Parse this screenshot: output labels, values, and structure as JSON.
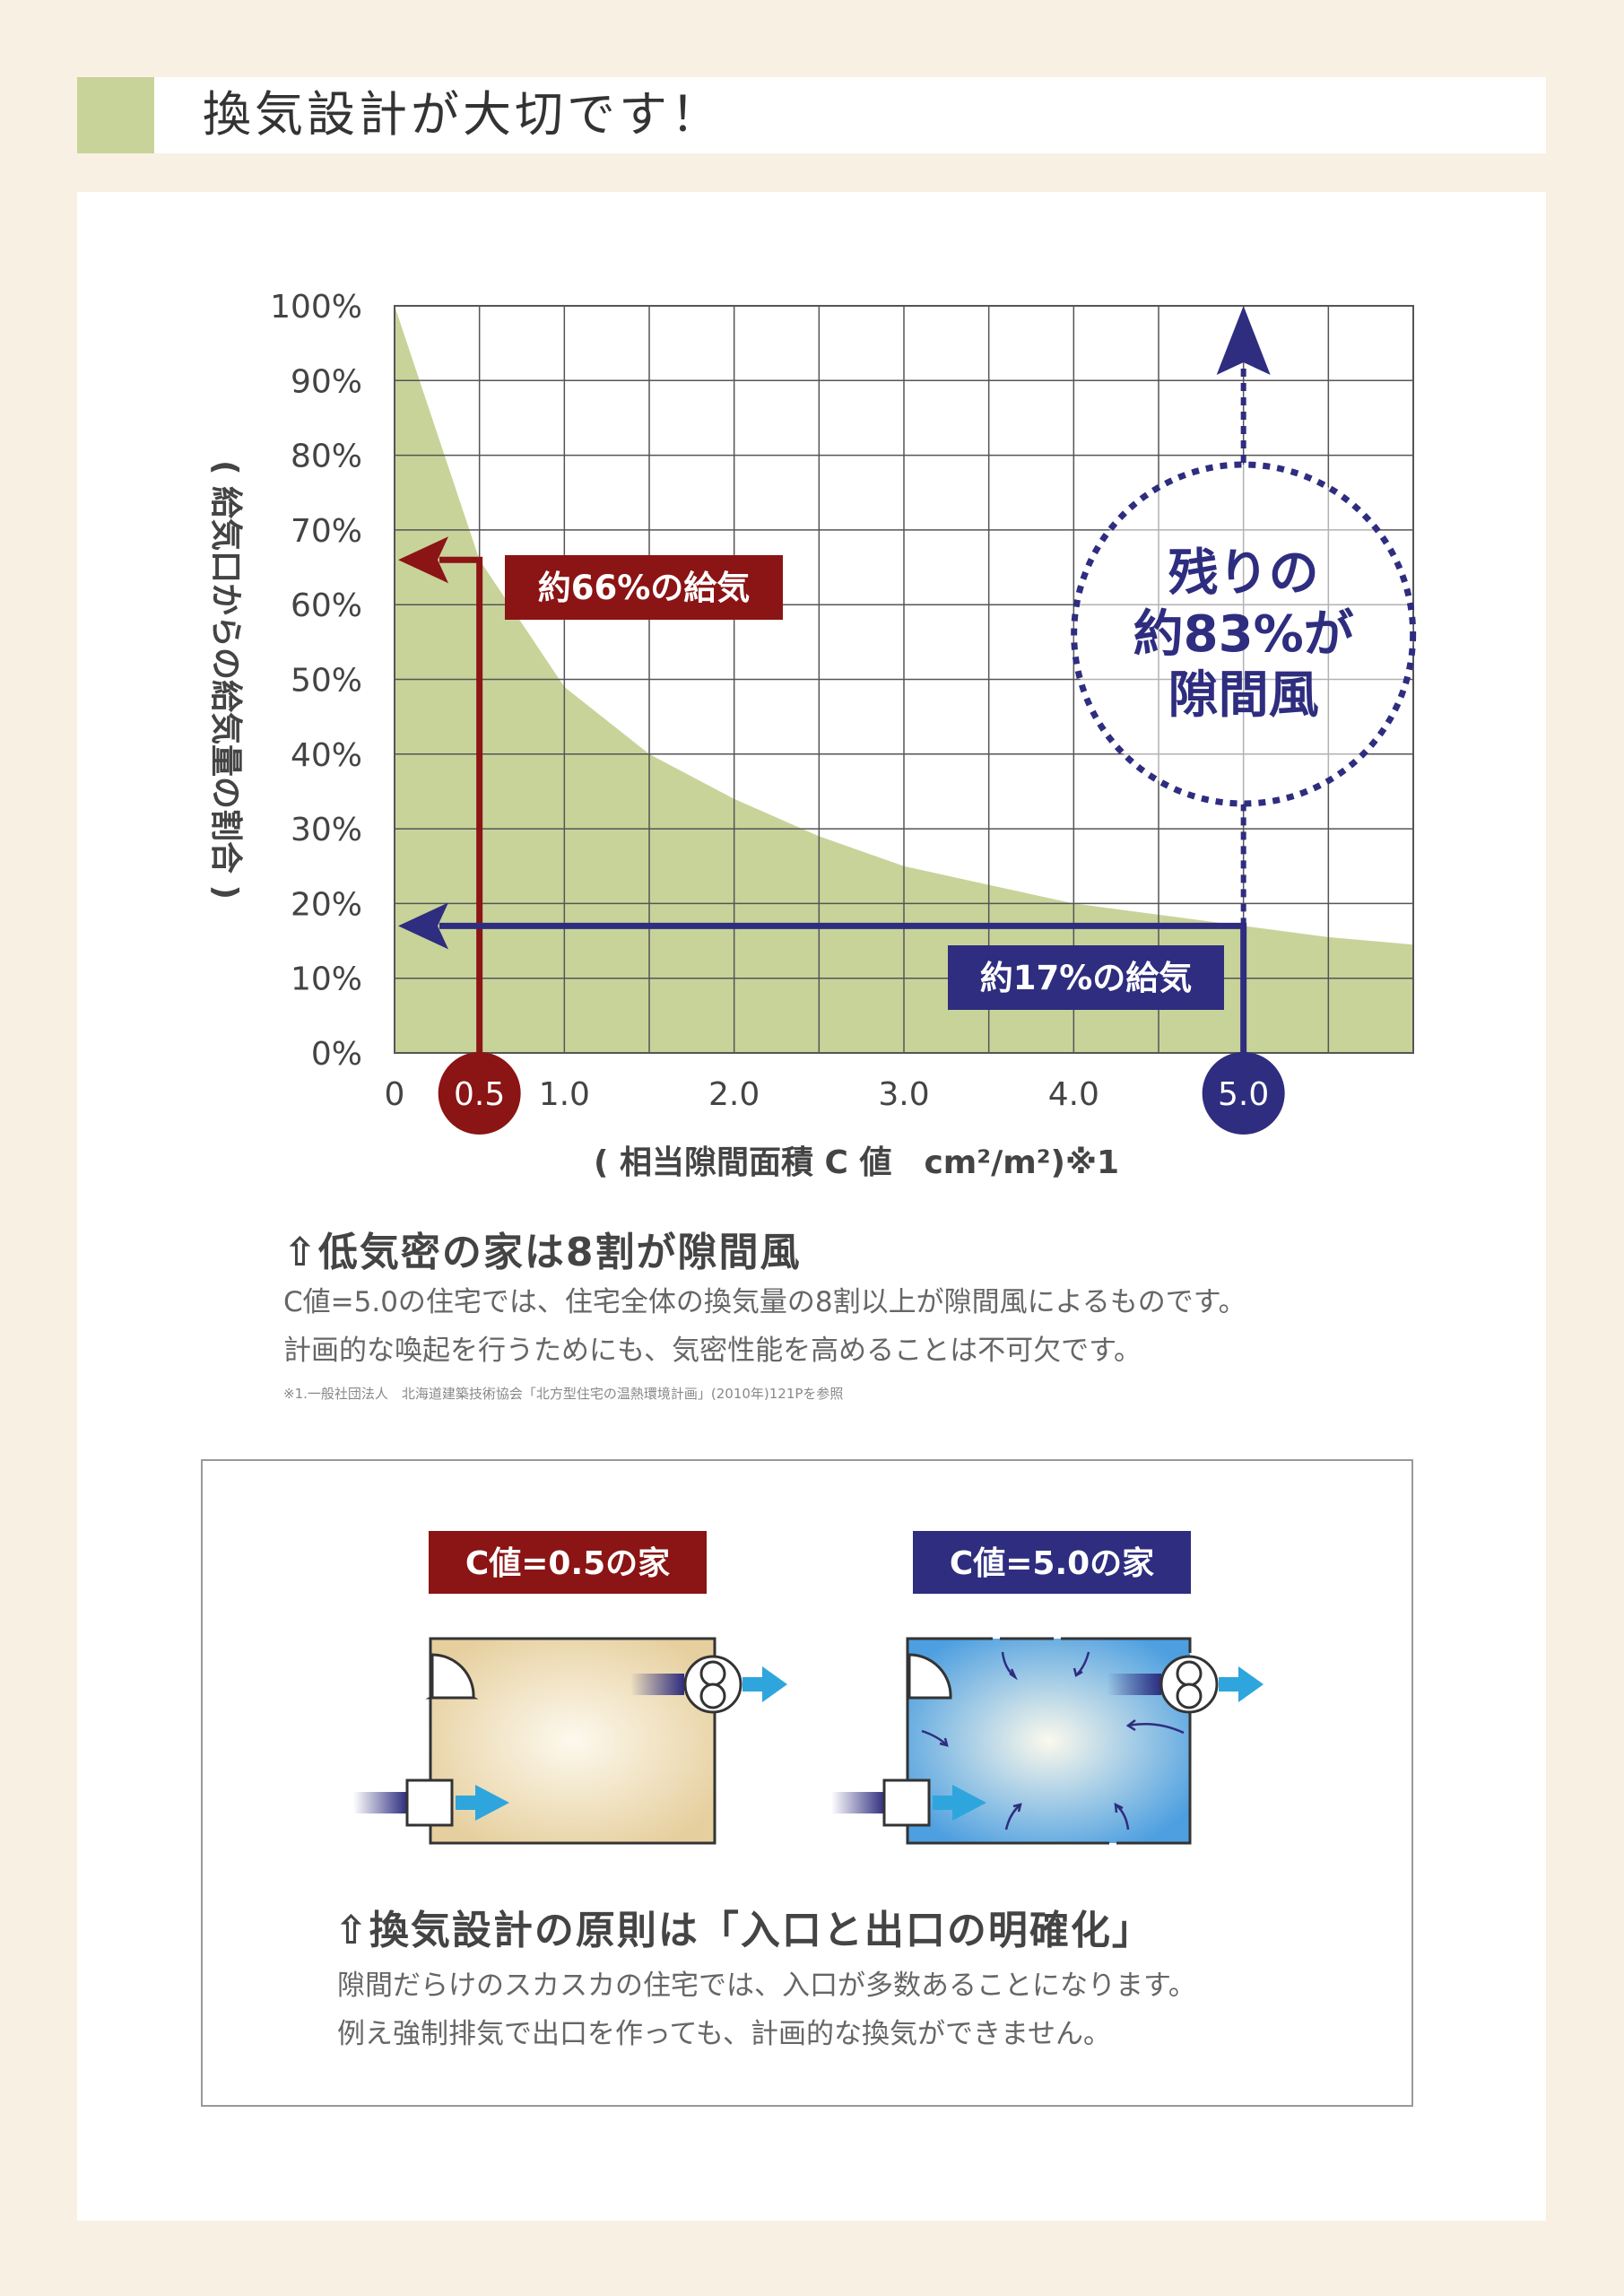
{
  "header": {
    "title": "換気設計が大切です！"
  },
  "chart_data": {
    "type": "area",
    "x": [
      0,
      0.5,
      1.0,
      1.5,
      2.0,
      2.5,
      3.0,
      3.5,
      4.0,
      4.5,
      5.0,
      5.5,
      6.0
    ],
    "values": [
      100,
      66,
      49,
      40,
      34,
      29,
      25,
      22.5,
      20,
      18.5,
      17,
      15.5,
      14.5
    ],
    "xlim": [
      0,
      6.0
    ],
    "ylim": [
      0,
      100
    ],
    "x_ticks": [
      "0",
      "0.5",
      "1.0",
      "2.0",
      "3.0",
      "4.0",
      "5.0"
    ],
    "y_ticks": [
      "0%",
      "10%",
      "20%",
      "30%",
      "40%",
      "50%",
      "60%",
      "70%",
      "80%",
      "90%",
      "100%"
    ],
    "xlabel": "( 相当隙間面積 C 値　cm²/m²)※1",
    "ylabel": "( 給気口からの給気量の割合 )",
    "grid": true,
    "fill_color": "#c8d39a",
    "annotations": [
      {
        "x": 0.5,
        "y": 66,
        "label": "約66%の給気",
        "color": "#8b1414"
      },
      {
        "x": 5.0,
        "y": 17,
        "label": "約17%の給気",
        "color": "#2e2d7f"
      }
    ],
    "callout": {
      "lines": [
        "残りの",
        "約83%が",
        "隙間風"
      ],
      "color": "#2e2d7f"
    }
  },
  "section1": {
    "heading": "⇧低気密の家は8割が隙間風",
    "line1": "C値=5.0の住宅では、住宅全体の換気量の8割以上が隙間風によるものです。",
    "line2": "計画的な喚起を行うためにも、気密性能を高めることは不可欠です。",
    "footnote": "※1.一般社団法人　北海道建築技術協会「北方型住宅の温熱環境計画」(2010年)121Pを参照"
  },
  "section2": {
    "house1_label": "C値=0.5の家",
    "house2_label": "C値=5.0の家",
    "heading": "⇧換気設計の原則は「入口と出口の明確化」",
    "line1": "隙間だらけのスカスカの住宅では、入口が多数あることになります。",
    "line2": "例え強制排気で出口を作っても、計画的な換気ができません。",
    "red": "#8b1414",
    "navy": "#2e2d7f",
    "cyan": "#2ea6dd"
  }
}
